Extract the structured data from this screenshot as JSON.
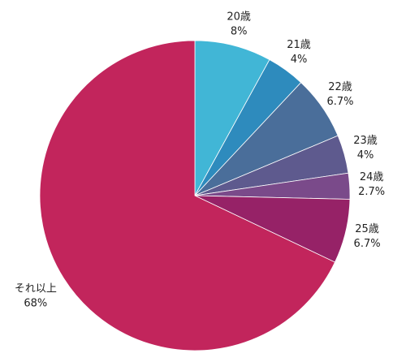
{
  "chart_data": {
    "type": "pie",
    "categories": [
      "20歳",
      "21歳",
      "22歳",
      "23歳",
      "24歳",
      "25歳",
      "それ以上"
    ],
    "values": [
      8,
      4,
      6.7,
      4,
      2.7,
      6.7,
      68
    ],
    "value_labels": [
      "8%",
      "4%",
      "6.7%",
      "4%",
      "2.7%",
      "6.7%",
      "68%"
    ],
    "colors": [
      "#41b6d6",
      "#2e8bbd",
      "#4a6e9a",
      "#5e5a8e",
      "#7a4a8a",
      "#962267",
      "#c2255c"
    ]
  }
}
